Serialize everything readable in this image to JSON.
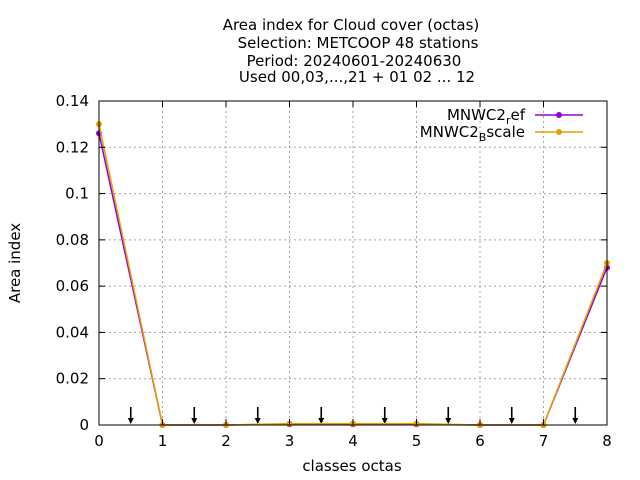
{
  "chart_data": {
    "type": "line",
    "title_lines": [
      "Area index  for Cloud cover (octas)",
      "Selection: METCOOP     48 stations",
      "Period: 20240601-20240630",
      "Used 00,03,...,21 + 01 02 ... 12"
    ],
    "xlabel": "classes octas",
    "ylabel": "Area index",
    "xlim": [
      0,
      8
    ],
    "ylim": [
      0,
      0.14
    ],
    "x_ticks": [
      "0",
      "1",
      "2",
      "3",
      "4",
      "5",
      "6",
      "7",
      "8"
    ],
    "y_ticks": [
      "0",
      "0.02",
      "0.04",
      "0.06",
      "0.08",
      "0.1",
      "0.12",
      "0.14"
    ],
    "grid": true,
    "legend_position": "top-right",
    "x": [
      0,
      1,
      2,
      3,
      4,
      5,
      6,
      7,
      8
    ],
    "series": [
      {
        "name_base": "MNWC2",
        "name_sub": "r",
        "name_rest": "ef",
        "color": "#9400d3",
        "values": [
          0.126,
          0.0,
          0.0,
          0.0003,
          0.0003,
          0.0003,
          0.0,
          0.0,
          0.068
        ]
      },
      {
        "name_base": "MNWC2",
        "name_sub": "B",
        "name_rest": "scale",
        "color": "#e69f00",
        "values": [
          0.13,
          0.0,
          0.0,
          0.0006,
          0.0006,
          0.0006,
          0.0,
          0.0,
          0.07
        ]
      }
    ],
    "arrow_markers_x": [
      0.5,
      1.5,
      2.5,
      3.5,
      4.5,
      5.5,
      6.5,
      7.5
    ]
  }
}
